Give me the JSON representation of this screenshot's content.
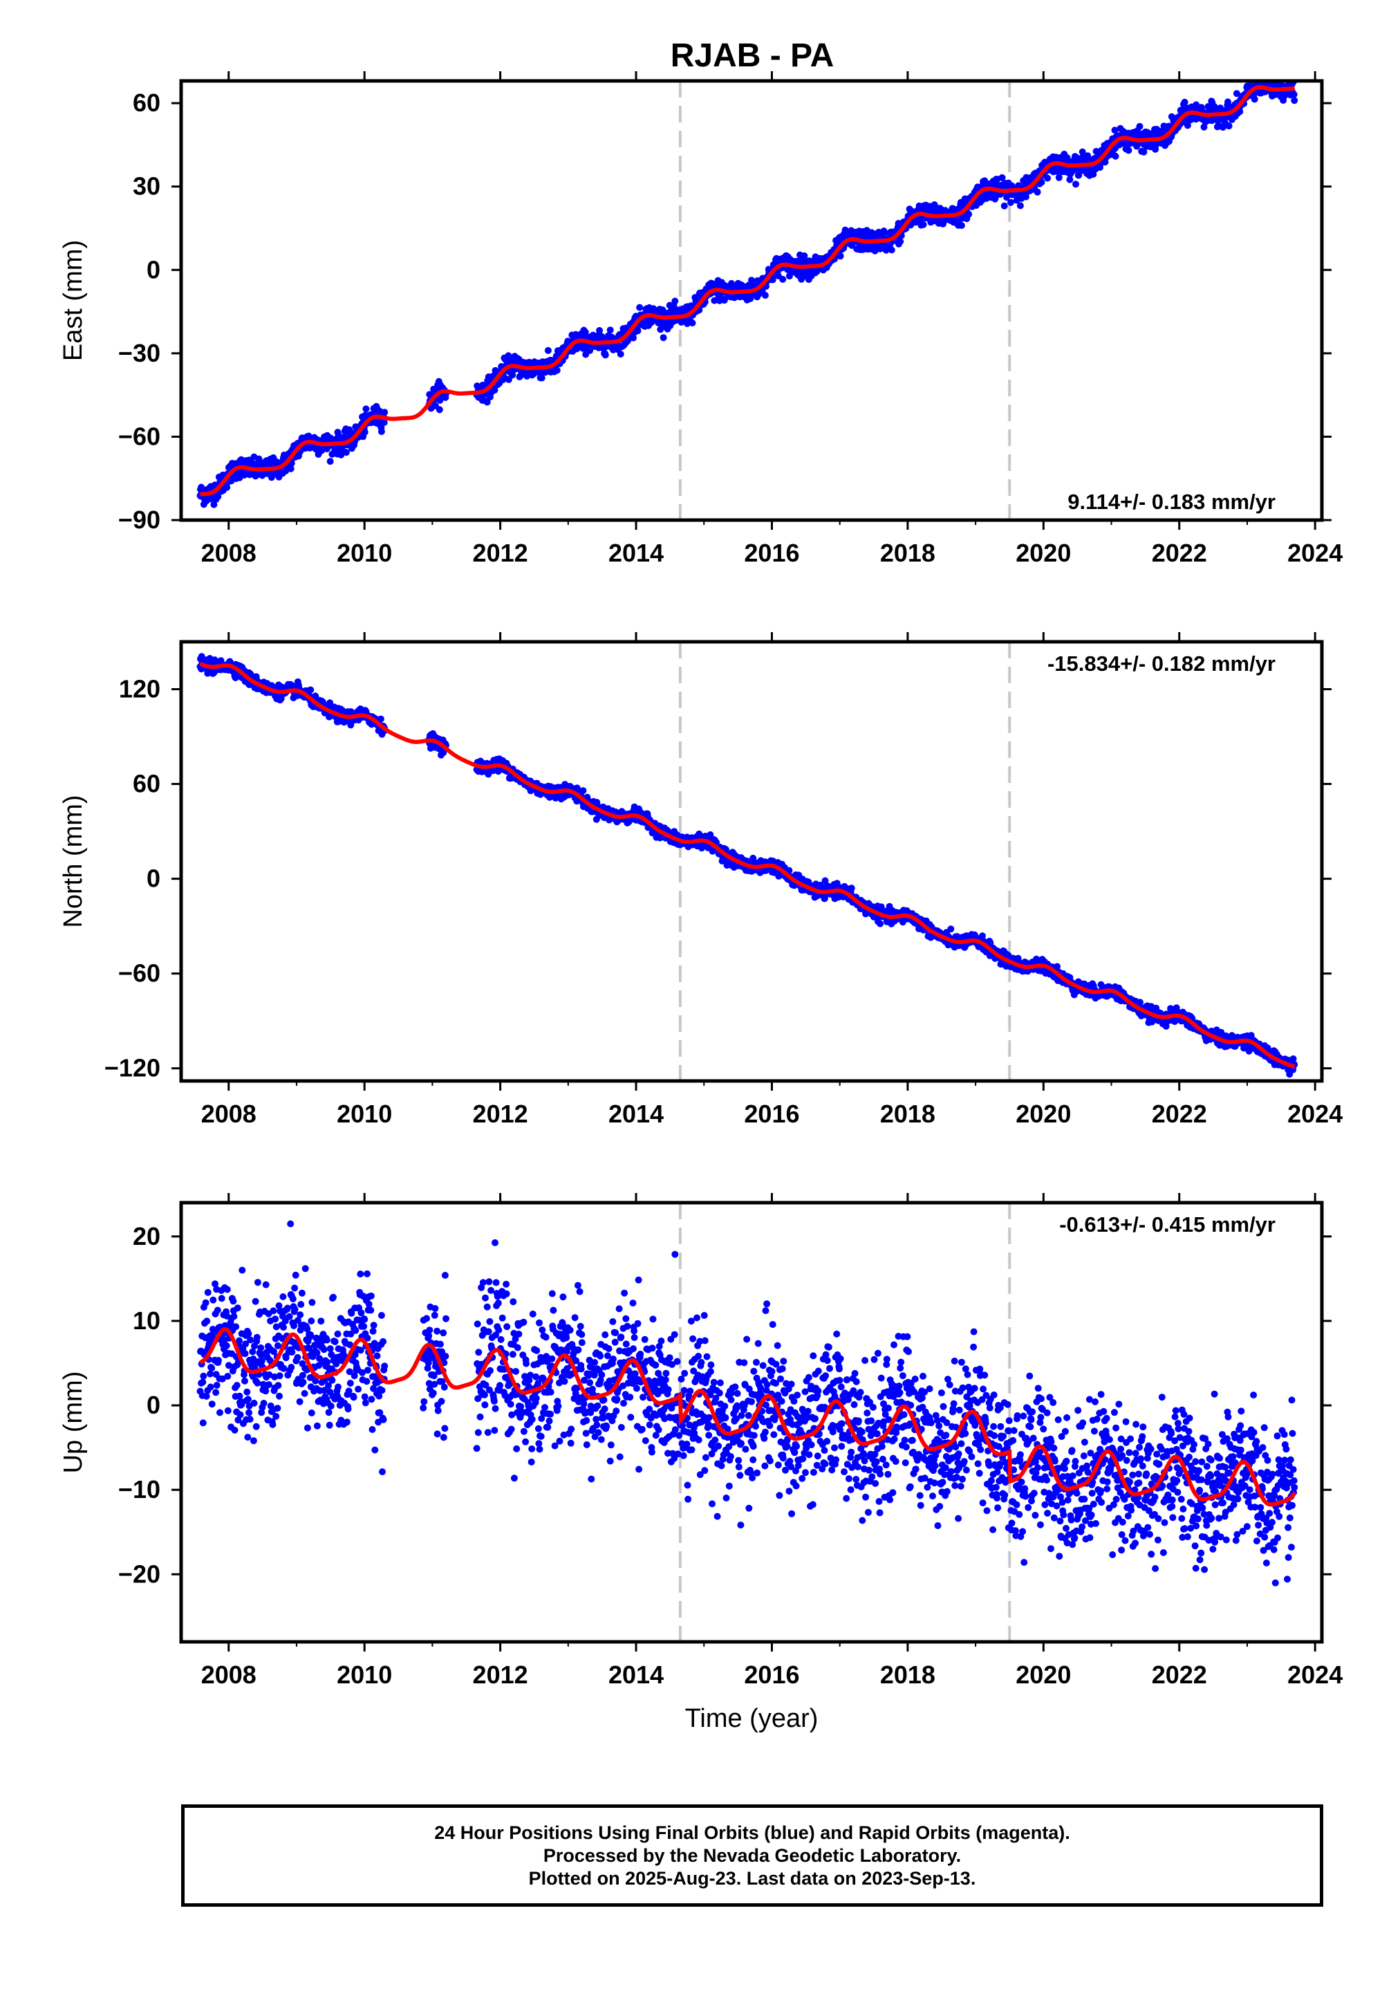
{
  "title": "RJAB - PA",
  "footer": {
    "lines": [
      "24 Hour Positions Using Final Orbits (blue) and Rapid Orbits (magenta).",
      "Processed by the Nevada Geodetic Laboratory.",
      "Plotted on 2025-Aug-23. Last data on 2023-Sep-13."
    ]
  },
  "colors": {
    "points": "#0000ff",
    "fit": "#ff0000",
    "breaks": "#c8c8c8"
  },
  "chart_data": [
    {
      "type": "scatter",
      "ylabel": "East (mm)",
      "xlabel": "",
      "xlim": [
        2007.3,
        2024.1
      ],
      "ylim": [
        -90,
        68
      ],
      "xticks": [
        "2008",
        "2010",
        "2012",
        "2014",
        "2016",
        "2018",
        "2020",
        "2022",
        "2024"
      ],
      "yticks": [
        "60",
        "30",
        "0",
        "−30",
        "−60",
        "−90"
      ],
      "xtick_values": [
        2008,
        2010,
        2012,
        2014,
        2016,
        2018,
        2020,
        2022,
        2024
      ],
      "ytick_values": [
        60,
        30,
        0,
        -30,
        -60,
        -90
      ],
      "rate_label": "9.114+/- 0.183 mm/yr",
      "rate_label_pos": "bottom-right",
      "breaks": [
        2014.65,
        2019.5
      ],
      "fit": {
        "intercept_year": 2015.5,
        "intercept": -7.0,
        "slope": 9.114,
        "annual_amp": 2.5,
        "annual_phase": 0.5
      },
      "scatter": 1.8,
      "gaps": [
        [
          2010.3,
          2010.95
        ],
        [
          2011.2,
          2011.65
        ]
      ],
      "series": [
        {
          "name": "",
          "values": []
        }
      ]
    },
    {
      "type": "scatter",
      "ylabel": "North (mm)",
      "xlabel": "",
      "xlim": [
        2007.3,
        2024.1
      ],
      "ylim": [
        -128,
        150
      ],
      "xticks": [
        "2008",
        "2010",
        "2012",
        "2014",
        "2016",
        "2018",
        "2020",
        "2022",
        "2024"
      ],
      "yticks": [
        "120",
        "60",
        "0",
        "−60",
        "−120"
      ],
      "xtick_values": [
        2008,
        2010,
        2012,
        2014,
        2016,
        2018,
        2020,
        2022,
        2024
      ],
      "ytick_values": [
        120,
        60,
        0,
        -60,
        -120
      ],
      "rate_label": "-15.834+/- 0.182 mm/yr",
      "rate_label_pos": "top-right",
      "breaks": [
        2014.65,
        2019.5
      ],
      "fit": {
        "intercept_year": 2015.5,
        "intercept": 13.0,
        "slope": -15.834,
        "annual_amp": 2.8,
        "annual_phase": 1.2
      },
      "scatter": 2.0,
      "gaps": [
        [
          2010.3,
          2010.95
        ],
        [
          2011.2,
          2011.65
        ]
      ],
      "series": [
        {
          "name": "",
          "values": []
        }
      ]
    },
    {
      "type": "scatter",
      "ylabel": "Up (mm)",
      "xlabel": "Time (year)",
      "xlim": [
        2007.3,
        2024.1
      ],
      "ylim": [
        -28,
        24
      ],
      "xticks": [
        "2008",
        "2010",
        "2012",
        "2014",
        "2016",
        "2018",
        "2020",
        "2022",
        "2024"
      ],
      "yticks": [
        "20",
        "10",
        "0",
        "−10",
        "−20"
      ],
      "xtick_values": [
        2008,
        2010,
        2012,
        2014,
        2016,
        2018,
        2020,
        2022,
        2024
      ],
      "ytick_values": [
        20,
        10,
        0,
        -10,
        -20
      ],
      "rate_label": "-0.613+/- 0.415 mm/yr",
      "rate_label_pos": "top-right",
      "breaks": [
        2014.65,
        2019.5
      ],
      "fit": {
        "intercept_year": 2015.5,
        "intercept": 1.5,
        "slope": -0.613,
        "annual_amp": 2.3,
        "annual_phase": 2.0,
        "offsets": [
          [
            2014.65,
            -3.0
          ],
          [
            2019.5,
            -3.5
          ]
        ]
      },
      "scatter": 4.0,
      "gaps": [
        [
          2010.3,
          2010.85
        ],
        [
          2011.2,
          2011.65
        ]
      ],
      "series": [
        {
          "name": "",
          "values": []
        }
      ]
    }
  ]
}
